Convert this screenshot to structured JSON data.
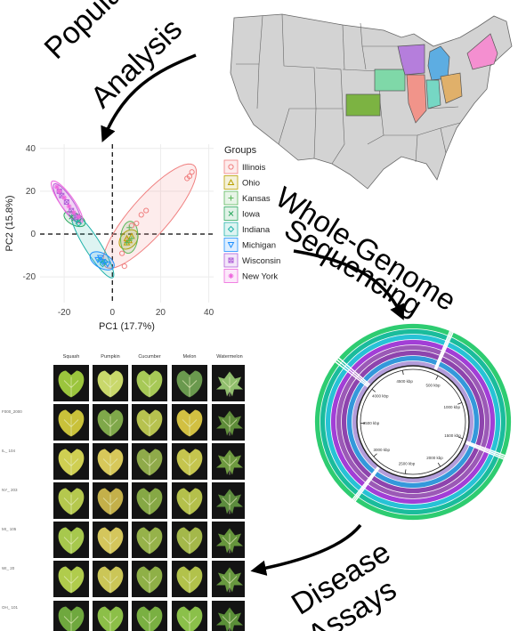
{
  "labels": {
    "population": [
      "Population",
      "Analysis"
    ],
    "wgs": [
      "Whole-Genome",
      "Sequencing"
    ],
    "disease": [
      "Disease",
      "Assays"
    ]
  },
  "chart_data": {
    "type": "scatter",
    "xlabel": "PC1 (17.7%)",
    "ylabel": "PC2 (15.8%)",
    "xlim": [
      -30,
      42
    ],
    "ylim": [
      -32,
      42
    ],
    "xticks": [
      -20,
      0,
      20,
      40
    ],
    "yticks": [
      -20,
      0,
      20,
      40
    ],
    "legend_title": "Groups",
    "legend_position": "right",
    "series": [
      {
        "name": "Illinois",
        "color": "#f08080",
        "marker": "circle-o",
        "points": [
          [
            32,
            27
          ],
          [
            33,
            29
          ],
          [
            31,
            26
          ],
          [
            12,
            9
          ],
          [
            14,
            11
          ],
          [
            10,
            5
          ],
          [
            8,
            4
          ],
          [
            6,
            -3
          ],
          [
            4,
            -9
          ],
          [
            5,
            -15
          ]
        ]
      },
      {
        "name": "Ohio",
        "color": "#b8a000",
        "marker": "triangle",
        "points": [
          [
            6,
            -2
          ],
          [
            7,
            -3
          ],
          [
            8,
            -1
          ],
          [
            6,
            -4
          ]
        ]
      },
      {
        "name": "Kansas",
        "color": "#5cb85c",
        "marker": "plus",
        "points": [
          [
            7,
            -3
          ],
          [
            8,
            -2
          ],
          [
            6,
            -4
          ],
          [
            7,
            3
          ]
        ]
      },
      {
        "name": "Iowa",
        "color": "#2ca85f",
        "marker": "x",
        "points": [
          [
            -17,
            8
          ],
          [
            -16,
            7
          ],
          [
            -14,
            6
          ]
        ]
      },
      {
        "name": "Indiana",
        "color": "#20b2aa",
        "marker": "diamond",
        "points": [
          [
            -15,
            7
          ],
          [
            -14,
            5
          ],
          [
            -5,
            -12
          ],
          [
            -3,
            -13
          ],
          [
            -4,
            -14
          ]
        ]
      },
      {
        "name": "Michigan",
        "color": "#1e90ff",
        "marker": "triangle-down",
        "points": [
          [
            -5,
            -11
          ],
          [
            -4,
            -13
          ],
          [
            -2,
            -14
          ],
          [
            -6,
            -12
          ]
        ]
      },
      {
        "name": "Wisconsin",
        "color": "#b060d8",
        "marker": "square-x",
        "points": [
          [
            -22,
            20
          ],
          [
            -21,
            18
          ],
          [
            -19,
            15
          ],
          [
            -17,
            11
          ],
          [
            -15,
            8
          ]
        ]
      },
      {
        "name": "New York",
        "color": "#ee66dd",
        "marker": "asterisk",
        "points": [
          [
            -23,
            22
          ],
          [
            -22,
            20
          ],
          [
            -20,
            17
          ],
          [
            -18,
            13
          ],
          [
            -16,
            10
          ],
          [
            -14,
            8
          ]
        ]
      }
    ]
  },
  "map": {
    "highlighted_states": [
      {
        "name": "Wisconsin",
        "color": "#b57edc"
      },
      {
        "name": "Michigan",
        "color": "#5dade2"
      },
      {
        "name": "Iowa",
        "color": "#7fd8a8"
      },
      {
        "name": "Illinois",
        "color": "#f1948a"
      },
      {
        "name": "Indiana",
        "color": "#76d7c4"
      },
      {
        "name": "Ohio",
        "color": "#e0b06a"
      },
      {
        "name": "Kansas",
        "color": "#7cb342"
      },
      {
        "name": "New York",
        "color": "#f48fd0"
      }
    ]
  },
  "genome": {
    "ring_colors": [
      "#2ecc71",
      "#1abc9c",
      "#27c2d6",
      "#a23ed6",
      "#9b59b6",
      "#8e44ad",
      "#3498db",
      "#b39ddb"
    ],
    "tick_labels": [
      "4500 kbp",
      "500 kbp",
      "1000 kbp",
      "1500 kbp",
      "2000 kbp",
      "2500 kbp",
      "3000 kbp",
      "3500 kbp",
      "4000 kbp"
    ]
  },
  "assays": {
    "columns": [
      "Squash",
      "Pumpkin",
      "Cucumber",
      "Melon",
      "Watermelon"
    ],
    "rows": [
      "F000_2000",
      "IL_ 104",
      "NY_ 203",
      "MI_ 105",
      "WI_ 20",
      "OH_ 101",
      "Control"
    ]
  }
}
